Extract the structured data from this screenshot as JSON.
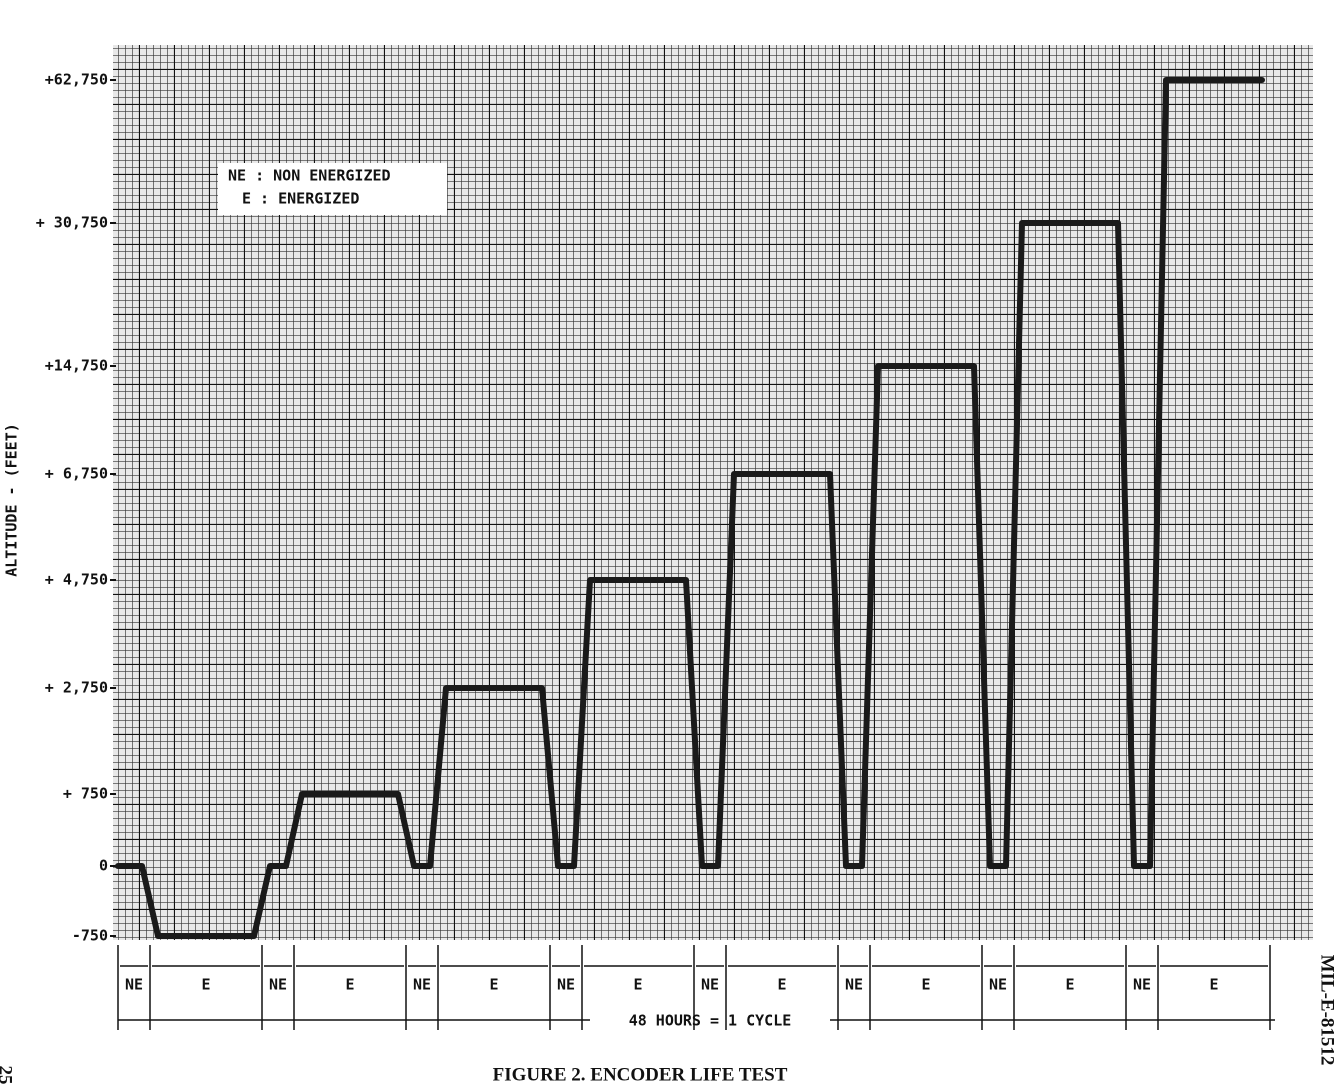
{
  "chart_data": {
    "type": "step",
    "title": "FIGURE 2.  ENCODER LIFE TEST",
    "y_label": "ALTITUDE - (FEET)",
    "legend": [
      "NE : NON ENERGIZED",
      "E : ENERGIZED"
    ],
    "cycle_label": "48 HOURS = 1 CYCLE",
    "side_label": "MIL-E-81512",
    "page_number": "25",
    "categories": [
      "NE",
      "E",
      "NE",
      "E",
      "NE",
      "E",
      "NE",
      "E",
      "NE",
      "E",
      "NE",
      "E",
      "NE",
      "E",
      "NE",
      "E"
    ],
    "values": [
      0,
      -750,
      0,
      750,
      0,
      2750,
      0,
      4750,
      0,
      6750,
      0,
      14750,
      0,
      30750,
      0,
      62750
    ],
    "color": "#1a1a1a",
    "ylim": [
      -750,
      62750
    ],
    "yticks": [
      -750,
      0,
      {
        "value": 750,
        "label": "+ 750"
      },
      {
        "value": 2750,
        "label": "+ 2,750"
      },
      {
        "value": 4750,
        "label": "+ 4,750"
      },
      {
        "value": 6750,
        "label": "+ 6,750"
      },
      {
        "value": 14750,
        "label": "+14,750"
      },
      {
        "value": 30750,
        "label": "+ 30,750"
      },
      {
        "value": 62750,
        "label": "+62,750"
      }
    ]
  }
}
